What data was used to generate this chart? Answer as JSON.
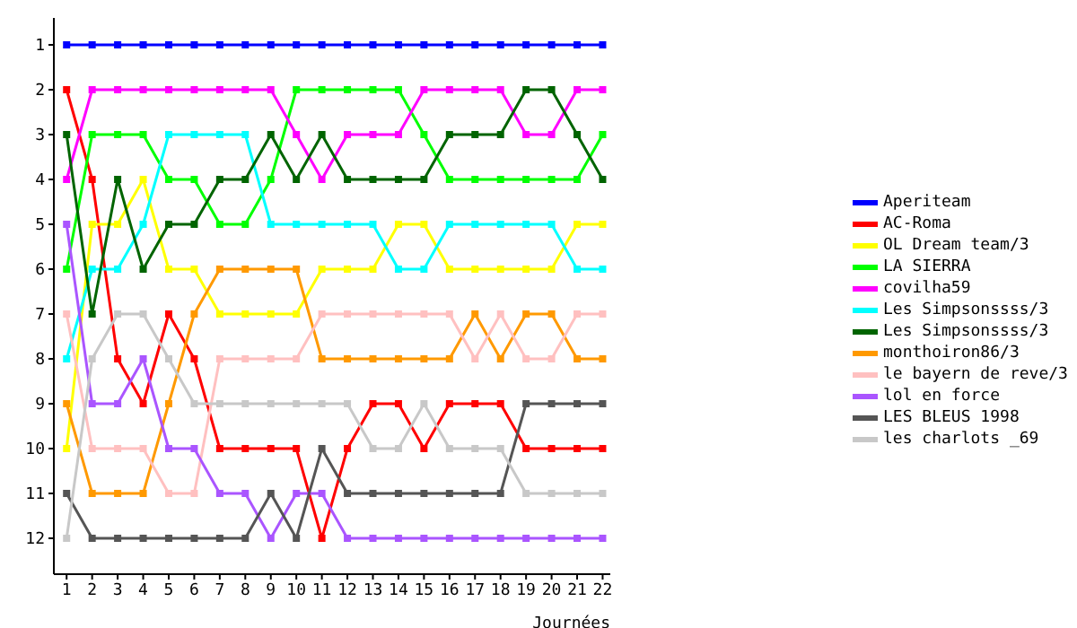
{
  "chart_data": {
    "type": "line",
    "xlabel": "Journées",
    "x": [
      1,
      2,
      3,
      4,
      5,
      6,
      7,
      8,
      9,
      10,
      11,
      12,
      13,
      14,
      15,
      16,
      17,
      18,
      19,
      20,
      21,
      22
    ],
    "xlim": [
      0.5,
      22.3
    ],
    "xticks": [
      1,
      2,
      3,
      4,
      5,
      6,
      7,
      8,
      9,
      10,
      11,
      12,
      13,
      14,
      15,
      16,
      17,
      18,
      19,
      20,
      21,
      22
    ],
    "ylim": [
      12.8,
      0.4
    ],
    "yticks": [
      1,
      2,
      3,
      4,
      5,
      6,
      7,
      8,
      9,
      10,
      11,
      12
    ],
    "grid": false,
    "legend": "right",
    "marker": "square",
    "line_style": "solid",
    "series": [
      {
        "name": "Aperiteam",
        "color": "#0000ff",
        "values": [
          1,
          1,
          1,
          1,
          1,
          1,
          1,
          1,
          1,
          1,
          1,
          1,
          1,
          1,
          1,
          1,
          1,
          1,
          1,
          1,
          1,
          1
        ]
      },
      {
        "name": "AC-Roma",
        "color": "#ff0000",
        "values": [
          2,
          4,
          8,
          9,
          7,
          8,
          10,
          10,
          10,
          10,
          12,
          10,
          9,
          9,
          10,
          9,
          9,
          9,
          10,
          10,
          10,
          10
        ]
      },
      {
        "name": "OL Dream team/3",
        "color": "#ffff00",
        "values": [
          10,
          5,
          5,
          4,
          6,
          6,
          7,
          7,
          7,
          7,
          6,
          6,
          6,
          5,
          5,
          6,
          6,
          6,
          6,
          6,
          5,
          5
        ]
      },
      {
        "name": "LA SIERRA",
        "color": "#00ff00",
        "values": [
          6,
          3,
          3,
          3,
          4,
          4,
          5,
          5,
          4,
          2,
          2,
          2,
          2,
          2,
          3,
          4,
          4,
          4,
          4,
          4,
          4,
          3
        ]
      },
      {
        "name": "covilha59",
        "color": "#ff00ff",
        "values": [
          4,
          2,
          2,
          2,
          2,
          2,
          2,
          2,
          2,
          3,
          4,
          3,
          3,
          3,
          2,
          2,
          2,
          2,
          3,
          3,
          2,
          2
        ]
      },
      {
        "name": "Les Simpsonssss/3",
        "color": "#00ffff",
        "values": [
          8,
          6,
          6,
          5,
          3,
          3,
          3,
          3,
          5,
          5,
          5,
          5,
          5,
          6,
          6,
          5,
          5,
          5,
          5,
          5,
          6,
          6
        ]
      },
      {
        "name": "Les Simpsonssss/3",
        "color": "#006400",
        "values": [
          3,
          7,
          4,
          6,
          5,
          5,
          4,
          4,
          3,
          4,
          3,
          4,
          4,
          4,
          4,
          3,
          3,
          3,
          2,
          2,
          3,
          4
        ]
      },
      {
        "name": "monthoiron86/3",
        "color": "#ff9900",
        "values": [
          9,
          11,
          11,
          11,
          9,
          7,
          6,
          6,
          6,
          6,
          8,
          8,
          8,
          8,
          8,
          8,
          7,
          8,
          7,
          7,
          8,
          8
        ]
      },
      {
        "name": "le bayern de reve/3",
        "color": "#ffc0c0",
        "values": [
          7,
          10,
          10,
          10,
          11,
          11,
          8,
          8,
          8,
          8,
          7,
          7,
          7,
          7,
          7,
          7,
          8,
          7,
          8,
          8,
          7,
          7
        ]
      },
      {
        "name": "lol en force",
        "color": "#aa55ff",
        "values": [
          5,
          9,
          9,
          8,
          10,
          10,
          11,
          11,
          12,
          11,
          11,
          12,
          12,
          12,
          12,
          12,
          12,
          12,
          12,
          12,
          12,
          12
        ]
      },
      {
        "name": "LES BLEUS 1998",
        "color": "#555555",
        "values": [
          11,
          12,
          12,
          12,
          12,
          12,
          12,
          12,
          11,
          12,
          10,
          11,
          11,
          11,
          11,
          11,
          11,
          11,
          9,
          9,
          9,
          9
        ]
      },
      {
        "name": "les charlots _69",
        "color": "#c8c8c8",
        "values": [
          12,
          8,
          7,
          7,
          8,
          9,
          9,
          9,
          9,
          9,
          9,
          9,
          10,
          10,
          9,
          10,
          10,
          10,
          11,
          11,
          11,
          11
        ]
      }
    ]
  }
}
